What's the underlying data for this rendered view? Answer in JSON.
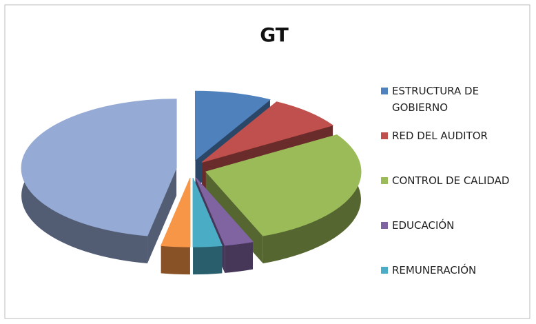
{
  "chart_data": {
    "type": "pie",
    "title": "GT",
    "categories": [
      "ESTRUCTURA DE GOBIERNO",
      "RED DEL AUDITOR",
      "CONTROL DE CALIDAD",
      "EDUCACIÓN",
      "REMUNERACIÓN",
      null,
      null
    ],
    "values": [
      8,
      8,
      28,
      3,
      3,
      3,
      47
    ],
    "colors": [
      "#4f81bd",
      "#c0504d",
      "#9bbb59",
      "#8064a2",
      "#4bacc6",
      "#f79646",
      "#95aad4"
    ],
    "legend": "right"
  }
}
